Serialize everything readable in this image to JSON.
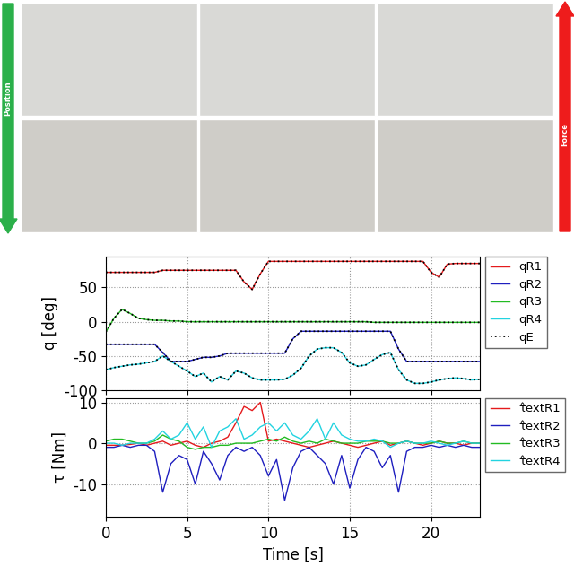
{
  "arrows": {
    "left": "Position",
    "right": "Force"
  },
  "chart_data": [
    {
      "type": "line",
      "y_label": "q [deg]",
      "x": [
        0,
        0.5,
        1,
        1.5,
        2,
        2.5,
        3,
        3.5,
        4,
        4.5,
        5,
        5.5,
        6,
        6.5,
        7,
        7.5,
        8,
        8.5,
        9,
        9.5,
        10,
        10.5,
        11,
        11.5,
        12,
        12.5,
        13,
        13.5,
        14,
        14.5,
        15,
        15.5,
        16,
        16.5,
        17,
        17.5,
        18,
        18.5,
        19,
        19.5,
        20,
        20.5,
        21,
        21.5,
        22,
        22.5,
        23
      ],
      "xlim": [
        0,
        23
      ],
      "xticks": [
        0,
        5,
        10,
        15,
        20
      ],
      "ylim": [
        -100,
        95
      ],
      "yticks": [
        -100,
        -50,
        0,
        50
      ],
      "grid": true,
      "legend": "upper left",
      "tick_labels": "y",
      "series": [
        {
          "name": "qR1",
          "color": "#e41a1c",
          "line_style": "solid",
          "values": [
            72,
            72,
            72,
            72,
            72,
            72,
            72,
            75,
            75,
            75,
            75,
            75,
            75,
            75,
            75,
            75,
            75,
            58,
            47,
            70,
            88,
            88,
            88,
            88,
            88,
            88,
            88,
            88,
            88,
            88,
            88,
            88,
            88,
            88,
            88,
            88,
            88,
            88,
            88,
            88,
            72,
            65,
            84,
            85,
            85,
            85,
            85
          ]
        },
        {
          "name": "qR2",
          "color": "#1f1fbf",
          "line_style": "solid",
          "values": [
            -33,
            -33,
            -33,
            -33,
            -33,
            -33,
            -33,
            -45,
            -58,
            -58,
            -58,
            -55,
            -52,
            -52,
            -50,
            -46,
            -46,
            -46,
            -46,
            -46,
            -46,
            -46,
            -46,
            -25,
            -14,
            -14,
            -14,
            -14,
            -14,
            -14,
            -14,
            -14,
            -14,
            -14,
            -14,
            -14,
            -40,
            -58,
            -58,
            -58,
            -58,
            -58,
            -58,
            -58,
            -58,
            -58,
            -58
          ]
        },
        {
          "name": "qR3",
          "color": "#22bb22",
          "line_style": "solid",
          "values": [
            -15,
            5,
            18,
            12,
            5,
            3,
            2,
            2,
            1,
            1,
            0,
            0,
            0,
            0,
            0,
            0,
            0,
            0,
            0,
            0,
            0,
            0,
            0,
            0,
            0,
            0,
            0,
            0,
            0,
            0,
            0,
            0,
            0,
            -1,
            -1,
            -1,
            -1,
            -1,
            -1,
            -1,
            -1,
            -1,
            -1,
            -1,
            -1,
            -1,
            -1
          ]
        },
        {
          "name": "qR4",
          "color": "#22d3e0",
          "line_style": "solid",
          "values": [
            -70,
            -67,
            -65,
            -63,
            -62,
            -60,
            -58,
            -50,
            -58,
            -65,
            -72,
            -80,
            -75,
            -88,
            -80,
            -85,
            -72,
            -75,
            -82,
            -85,
            -85,
            -85,
            -84,
            -78,
            -68,
            -50,
            -40,
            -38,
            -38,
            -45,
            -60,
            -65,
            -63,
            -55,
            -48,
            -45,
            -70,
            -85,
            -90,
            -90,
            -88,
            -85,
            -83,
            -82,
            -83,
            -85,
            -84
          ]
        },
        {
          "name": "qE",
          "color": "#000000",
          "line_style": "dotted",
          "values": [
            [
              72,
              72,
              72,
              72,
              72,
              72,
              72,
              75,
              75,
              75,
              75,
              75,
              75,
              75,
              75,
              75,
              75,
              58,
              47,
              70,
              88,
              88,
              88,
              88,
              88,
              88,
              88,
              88,
              88,
              88,
              88,
              88,
              88,
              88,
              88,
              88,
              88,
              88,
              88,
              88,
              72,
              65,
              84,
              85,
              85,
              85,
              85
            ],
            [
              -33,
              -33,
              -33,
              -33,
              -33,
              -33,
              -33,
              -45,
              -58,
              -58,
              -58,
              -55,
              -52,
              -52,
              -50,
              -46,
              -46,
              -46,
              -46,
              -46,
              -46,
              -46,
              -46,
              -25,
              -14,
              -14,
              -14,
              -14,
              -14,
              -14,
              -14,
              -14,
              -14,
              -14,
              -14,
              -14,
              -40,
              -58,
              -58,
              -58,
              -58,
              -58,
              -58,
              -58,
              -58,
              -58,
              -58
            ],
            [
              -15,
              5,
              18,
              12,
              5,
              3,
              2,
              2,
              1,
              1,
              0,
              0,
              0,
              0,
              0,
              0,
              0,
              0,
              0,
              0,
              0,
              0,
              0,
              0,
              0,
              0,
              0,
              0,
              0,
              0,
              0,
              0,
              0,
              -1,
              -1,
              -1,
              -1,
              -1,
              -1,
              -1,
              -1,
              -1,
              -1,
              -1,
              -1,
              -1,
              -1
            ],
            [
              -70,
              -67,
              -65,
              -63,
              -62,
              -60,
              -58,
              -50,
              -58,
              -65,
              -72,
              -80,
              -75,
              -88,
              -80,
              -85,
              -72,
              -75,
              -82,
              -85,
              -85,
              -85,
              -84,
              -78,
              -68,
              -50,
              -40,
              -38,
              -38,
              -45,
              -60,
              -65,
              -63,
              -55,
              -48,
              -45,
              -70,
              -85,
              -90,
              -90,
              -88,
              -85,
              -83,
              -82,
              -83,
              -85,
              -84
            ]
          ]
        }
      ]
    },
    {
      "type": "line",
      "x_label": "Time [s]",
      "y_label": "τ [Nm]",
      "x": [
        0,
        0.5,
        1,
        1.5,
        2,
        2.5,
        3,
        3.5,
        4,
        4.5,
        5,
        5.5,
        6,
        6.5,
        7,
        7.5,
        8,
        8.5,
        9,
        9.5,
        10,
        10.5,
        11,
        11.5,
        12,
        12.5,
        13,
        13.5,
        14,
        14.5,
        15,
        15.5,
        16,
        16.5,
        17,
        17.5,
        18,
        18.5,
        19,
        19.5,
        20,
        20.5,
        21,
        21.5,
        22,
        22.5,
        23
      ],
      "xlim": [
        0,
        23
      ],
      "xticks": [
        0,
        5,
        10,
        15,
        20
      ],
      "ylim": [
        -18,
        11
      ],
      "yticks": [
        -10,
        0,
        10
      ],
      "grid": true,
      "legend": "upper left",
      "series": [
        {
          "name": "τ̂extR1",
          "color": "#e41a1c",
          "line_style": "solid",
          "values": [
            -0.5,
            -0.5,
            -0.5,
            -0.3,
            0,
            -0.5,
            0,
            0.5,
            -0.5,
            0,
            0.5,
            -0.5,
            -1,
            0,
            0.5,
            1.5,
            5,
            9,
            8,
            10,
            0.5,
            1,
            0.5,
            0,
            -0.5,
            -1,
            -0.5,
            0,
            0.5,
            0,
            -0.5,
            -1,
            -0.5,
            0,
            0.5,
            -0.5,
            0,
            0.5,
            0,
            -0.5,
            0,
            0.5,
            0,
            0,
            -0.5,
            0,
            0
          ]
        },
        {
          "name": "τ̂extR2",
          "color": "#1f1fbf",
          "line_style": "solid",
          "values": [
            -1,
            -1,
            -0.5,
            -1,
            -0.5,
            -0.5,
            -2,
            -12,
            -5,
            -3,
            -4,
            -10,
            -2,
            -5,
            -9,
            -3,
            -1,
            -2,
            -1,
            -3,
            -8,
            -4,
            -14,
            -6,
            -2,
            -1,
            -3,
            -5,
            -10,
            -3,
            -11,
            -4,
            -1,
            -2,
            -6,
            -3,
            -12,
            -2,
            -1,
            -1,
            -0.5,
            -1,
            -0.5,
            -1,
            -0.5,
            -1,
            -1
          ]
        },
        {
          "name": "τ̂extR3",
          "color": "#22bb22",
          "line_style": "solid",
          "values": [
            0.5,
            1,
            1,
            0.5,
            0,
            0,
            0.5,
            2,
            1,
            0.5,
            -1,
            -1.5,
            -1,
            -1,
            -0.5,
            -0.5,
            0,
            0,
            0,
            0.5,
            1,
            0.5,
            1.5,
            0.5,
            0,
            0.5,
            0,
            1,
            0.5,
            0,
            0,
            0,
            0.5,
            0.5,
            0.5,
            0,
            0,
            0.5,
            0,
            0,
            0,
            0.5,
            0,
            0,
            0.5,
            0,
            0
          ]
        },
        {
          "name": "τ̂extR4",
          "color": "#22d3e0",
          "line_style": "solid",
          "values": [
            0,
            0,
            -0.5,
            0,
            0,
            0,
            1,
            3,
            1,
            2,
            5,
            1,
            4,
            -1,
            3,
            4,
            6,
            1,
            2,
            4,
            5,
            3,
            5,
            2,
            1,
            3,
            6,
            1,
            5,
            2,
            1,
            0.5,
            0.5,
            1,
            0.5,
            -1,
            0,
            0.5,
            0,
            0,
            0.5,
            0,
            -0.5,
            0,
            0.5,
            0,
            0
          ]
        }
      ]
    }
  ]
}
